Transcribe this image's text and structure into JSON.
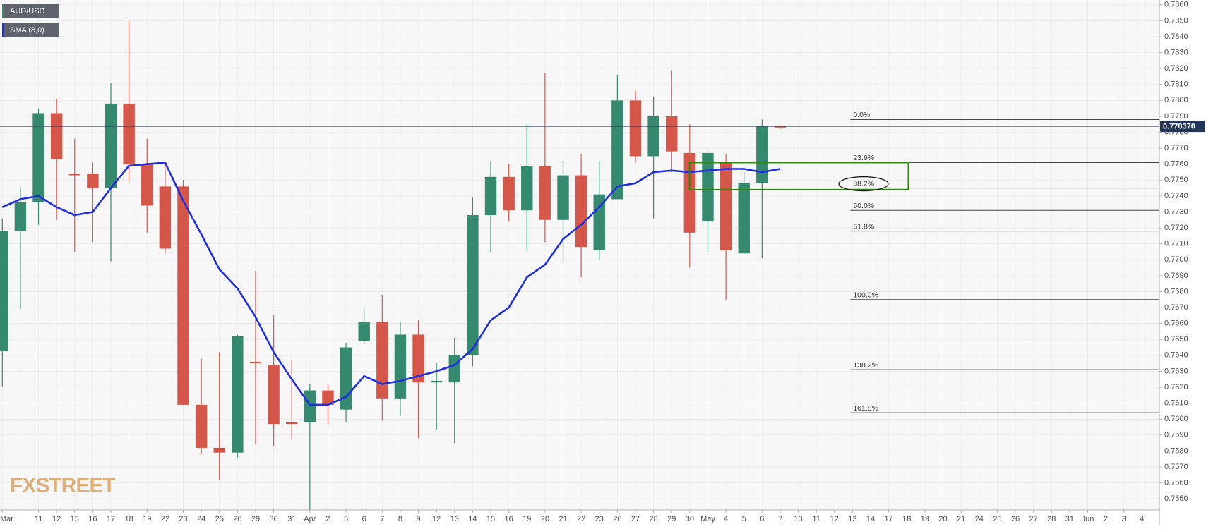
{
  "chart_data": {
    "type": "candlestick",
    "categories": [
      "Mar",
      null,
      "11",
      "12",
      "15",
      "16",
      "17",
      "18",
      "19",
      "22",
      "23",
      "24",
      "25",
      "26",
      "29",
      "30",
      "31",
      "Apr",
      "2",
      "5",
      "6",
      "7",
      "8",
      "9",
      "12",
      "13",
      "14",
      "15",
      "16",
      "19",
      "20",
      "21",
      "22",
      "23",
      "26",
      "27",
      "28",
      "29",
      "30",
      "May",
      "4",
      "5",
      "6",
      "7",
      "10",
      "11",
      "12",
      "13",
      "14",
      "17",
      "18",
      "19",
      "20",
      "21",
      "24",
      "25",
      "26",
      "27",
      "28",
      "31",
      "Jun",
      "2",
      "3",
      "4"
    ],
    "series": [
      {
        "name": "AUD/USD",
        "up_color": "#35896f",
        "down_color": "#d5574a",
        "open": [
          0.7643,
          0.7718,
          0.7736,
          0.7792,
          0.7754,
          0.7754,
          0.7745,
          0.7798,
          0.776,
          0.7746,
          0.7746,
          0.7609,
          0.7582,
          0.7579,
          0.7636,
          0.7634,
          0.7598,
          0.7598,
          0.7618,
          0.7606,
          0.7649,
          0.7661,
          0.7613,
          0.7653,
          0.7623,
          0.7623,
          0.764,
          0.7728,
          0.7752,
          0.7731,
          0.7759,
          0.7725,
          0.7753,
          0.7706,
          0.7738,
          0.78,
          0.7765,
          0.779,
          0.7767,
          0.7724,
          0.7761,
          0.7704,
          0.7748,
          0.7784,
          null,
          null,
          null,
          null,
          null,
          null,
          null,
          null,
          null,
          null,
          null,
          null,
          null,
          null,
          null,
          null,
          null,
          null,
          null,
          null
        ],
        "high": [
          0.7726,
          0.7745,
          0.7795,
          0.7801,
          0.7776,
          0.7761,
          0.7811,
          0.785,
          0.7776,
          0.776,
          0.775,
          0.7638,
          0.7642,
          0.7653,
          0.7693,
          0.7665,
          0.7637,
          0.7622,
          0.7622,
          0.7648,
          0.767,
          0.7678,
          0.7661,
          0.7662,
          0.7635,
          0.7651,
          0.7739,
          0.7762,
          0.776,
          0.7785,
          0.7817,
          0.7763,
          0.7766,
          0.7762,
          0.7816,
          0.7806,
          0.7802,
          0.7819,
          0.7785,
          0.7768,
          0.7766,
          0.7755,
          0.7788,
          0.7784,
          null,
          null,
          null,
          null,
          null,
          null,
          null,
          null,
          null,
          null,
          null,
          null,
          null,
          null,
          null,
          null,
          null,
          null,
          null,
          null
        ],
        "low": [
          0.762,
          0.7669,
          0.7722,
          0.7725,
          0.7705,
          0.7711,
          0.7699,
          0.7749,
          0.7717,
          0.7704,
          0.7609,
          0.7578,
          0.7562,
          0.7576,
          0.7584,
          0.7583,
          0.7587,
          0.7543,
          0.7597,
          0.7598,
          0.7647,
          0.7599,
          0.7602,
          0.7588,
          0.7593,
          0.7585,
          0.7633,
          0.7705,
          0.7724,
          0.7706,
          0.7711,
          0.7699,
          0.7689,
          0.77,
          0.7738,
          0.7761,
          0.7726,
          0.7755,
          0.7695,
          0.7706,
          0.7675,
          0.7704,
          0.7701,
          0.7782,
          null,
          null,
          null,
          null,
          null,
          null,
          null,
          null,
          null,
          null,
          null,
          null,
          null,
          null,
          null,
          null,
          null,
          null,
          null,
          null
        ],
        "close": [
          0.7718,
          0.7736,
          0.7792,
          0.7763,
          0.7753,
          0.7745,
          0.7798,
          0.776,
          0.7734,
          0.7707,
          0.7609,
          0.7582,
          0.7579,
          0.7652,
          0.7635,
          0.7597,
          0.7597,
          0.7618,
          0.7609,
          0.7645,
          0.7661,
          0.7613,
          0.7653,
          0.7623,
          0.7624,
          0.764,
          0.7728,
          0.7752,
          0.7731,
          0.7759,
          0.7725,
          0.7753,
          0.7708,
          0.7741,
          0.78,
          0.7765,
          0.779,
          0.7768,
          0.7717,
          0.7767,
          0.7706,
          0.7748,
          0.7784,
          0.7783,
          null,
          null,
          null,
          null,
          null,
          null,
          null,
          null,
          null,
          null,
          null,
          null,
          null,
          null,
          null,
          null,
          null,
          null,
          null,
          null
        ]
      },
      {
        "name": "SMA (8,0)",
        "type": "line",
        "color": "#1f2fe0",
        "values": [
          0.7733,
          0.7738,
          0.774,
          0.7733,
          0.7728,
          0.773,
          0.7745,
          0.7759,
          0.776,
          0.7761,
          0.7737,
          0.7716,
          0.7694,
          0.7682,
          0.7664,
          0.7642,
          0.7625,
          0.7609,
          0.7609,
          0.7614,
          0.7627,
          0.7622,
          0.7624,
          0.7627,
          0.763,
          0.7634,
          0.7644,
          0.7662,
          0.767,
          0.7689,
          0.7697,
          0.7713,
          0.7722,
          0.7733,
          0.7746,
          0.7748,
          0.7755,
          0.7756,
          0.7755,
          0.7756,
          0.7757,
          0.7757,
          0.7755,
          0.7757,
          null,
          null,
          null,
          null,
          null,
          null,
          null,
          null,
          null,
          null,
          null,
          null,
          null,
          null,
          null,
          null,
          null,
          null,
          null,
          null
        ]
      }
    ],
    "ylim": [
      0.7543,
      0.7863
    ],
    "yticks": [
      {
        "value": 0.755,
        "label": "0.7550"
      },
      {
        "value": 0.756,
        "label": "0.7560"
      },
      {
        "value": 0.757,
        "label": "0.7570"
      },
      {
        "value": 0.758,
        "label": "0.7580"
      },
      {
        "value": 0.759,
        "label": "0.7590"
      },
      {
        "value": 0.76,
        "label": "0.7600"
      },
      {
        "value": 0.761,
        "label": "0.7610"
      },
      {
        "value": 0.762,
        "label": "0.7620"
      },
      {
        "value": 0.763,
        "label": "0.7630"
      },
      {
        "value": 0.764,
        "label": "0.7640"
      },
      {
        "value": 0.765,
        "label": "0.7650"
      },
      {
        "value": 0.766,
        "label": "0.7660"
      },
      {
        "value": 0.767,
        "label": "0.7670"
      },
      {
        "value": 0.768,
        "label": "0.7680"
      },
      {
        "value": 0.769,
        "label": "0.7690"
      },
      {
        "value": 0.77,
        "label": "0.7700"
      },
      {
        "value": 0.771,
        "label": "0.7710"
      },
      {
        "value": 0.772,
        "label": "0.7720"
      },
      {
        "value": 0.773,
        "label": "0.7730"
      },
      {
        "value": 0.774,
        "label": "0.7740"
      },
      {
        "value": 0.775,
        "label": "0.7750"
      },
      {
        "value": 0.776,
        "label": "0.7760"
      },
      {
        "value": 0.777,
        "label": "0.7770"
      },
      {
        "value": 0.778,
        "label": "0.7780"
      },
      {
        "value": 0.779,
        "label": "0.7790"
      },
      {
        "value": 0.78,
        "label": "0.7800"
      },
      {
        "value": 0.781,
        "label": "0.7810"
      },
      {
        "value": 0.782,
        "label": "0.7820"
      },
      {
        "value": 0.783,
        "label": "0.7830"
      },
      {
        "value": 0.784,
        "label": "0.7840"
      },
      {
        "value": 0.785,
        "label": "0.7850"
      },
      {
        "value": 0.786,
        "label": "0.7860"
      }
    ],
    "grid": true,
    "last_price": {
      "value": 0.77837,
      "label": "0.778370"
    },
    "fib_levels": [
      {
        "name": "0.0%",
        "value": 0.7788
      },
      {
        "name": "23.6%",
        "value": 0.7761
      },
      {
        "name": "38.2%",
        "value": 0.7745
      },
      {
        "name": "50.0%",
        "value": 0.7731
      },
      {
        "name": "61.8%",
        "value": 0.7718
      },
      {
        "name": "100.0%",
        "value": 0.7675
      },
      {
        "name": "138.2%",
        "value": 0.7631
      },
      {
        "name": "161.8%",
        "value": 0.7604
      }
    ],
    "zone": {
      "ylim": [
        0.7744,
        0.7761
      ],
      "color": "#2f8a0a"
    },
    "watermark": "FXSTREET"
  }
}
